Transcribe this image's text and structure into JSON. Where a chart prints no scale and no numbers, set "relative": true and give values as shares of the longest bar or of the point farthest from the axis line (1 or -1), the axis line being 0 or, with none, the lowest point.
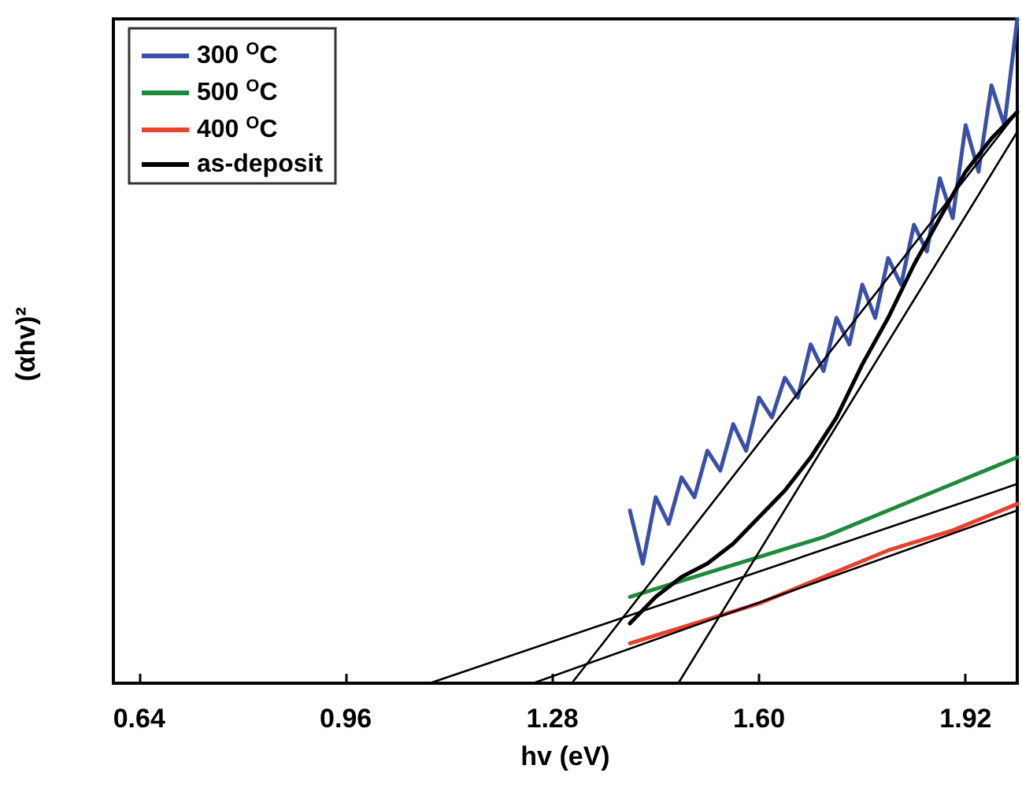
{
  "chart_data": {
    "type": "line",
    "xlabel": "hv (eV)",
    "ylabel": "(αhv)²",
    "relative": true,
    "xlim": [
      0.6,
      2.0
    ],
    "xticks": [
      {
        "value": 0.64,
        "label": "0.64"
      },
      {
        "value": 0.96,
        "label": "0.96"
      },
      {
        "value": 1.28,
        "label": "1.28"
      },
      {
        "value": 1.6,
        "label": "1.60"
      },
      {
        "value": 1.92,
        "label": "1.92"
      }
    ],
    "grid": false,
    "legend": "top left",
    "marker": "none",
    "line_style": "solid",
    "series": [
      {
        "name": "300 $^{O}$C",
        "color": "#3a4fa8",
        "x": [
          1.4,
          1.42,
          1.44,
          1.46,
          1.48,
          1.5,
          1.52,
          1.54,
          1.56,
          1.58,
          1.6,
          1.62,
          1.64,
          1.66,
          1.68,
          1.7,
          1.72,
          1.74,
          1.76,
          1.78,
          1.8,
          1.82,
          1.84,
          1.86,
          1.88,
          1.9,
          1.92,
          1.94,
          1.96,
          1.98,
          2.0
        ],
        "values": [
          0.26,
          0.18,
          0.28,
          0.24,
          0.31,
          0.28,
          0.35,
          0.32,
          0.39,
          0.35,
          0.43,
          0.4,
          0.46,
          0.43,
          0.51,
          0.47,
          0.55,
          0.51,
          0.6,
          0.55,
          0.64,
          0.6,
          0.69,
          0.65,
          0.76,
          0.7,
          0.84,
          0.77,
          0.9,
          0.84,
          1.0
        ]
      },
      {
        "name": "500 $^{O}$C",
        "color": "#1e8a3c",
        "x": [
          1.4,
          1.5,
          1.6,
          1.7,
          1.8,
          1.9,
          2.0
        ],
        "values": [
          0.13,
          0.16,
          0.19,
          0.22,
          0.26,
          0.3,
          0.34
        ]
      },
      {
        "name": "400 $^{O}$C",
        "color": "#e8412c",
        "x": [
          1.4,
          1.5,
          1.6,
          1.7,
          1.8,
          1.9,
          2.0
        ],
        "values": [
          0.06,
          0.09,
          0.12,
          0.16,
          0.2,
          0.23,
          0.27
        ]
      },
      {
        "name": "as-deposit",
        "color": "#000000",
        "x": [
          1.4,
          1.44,
          1.48,
          1.52,
          1.56,
          1.6,
          1.64,
          1.68,
          1.72,
          1.76,
          1.8,
          1.84,
          1.88,
          1.92,
          1.96,
          2.0
        ],
        "values": [
          0.09,
          0.13,
          0.16,
          0.18,
          0.21,
          0.25,
          0.29,
          0.34,
          0.4,
          0.48,
          0.55,
          0.63,
          0.7,
          0.77,
          0.82,
          0.86
        ]
      },
      {
        "color": "#000000",
        "x": [
          1.31,
          2.0
        ],
        "values": [
          0,
          0.86
        ]
      },
      {
        "color": "#000000",
        "x": [
          1.475,
          2.0
        ],
        "values": [
          0,
          0.83
        ]
      },
      {
        "color": "#000000",
        "x": [
          1.09,
          2.0
        ],
        "values": [
          0,
          0.3
        ]
      },
      {
        "color": "#000000",
        "x": [
          1.25,
          2.0
        ],
        "values": [
          0,
          0.26
        ]
      }
    ]
  }
}
